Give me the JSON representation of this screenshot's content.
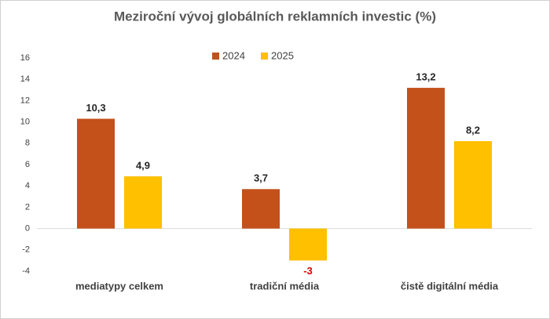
{
  "chart_data": {
    "type": "bar",
    "title": "Meziroční vývoj globálních reklamních investic (%)",
    "categories": [
      "mediatypy celkem",
      "tradiční média",
      "čistě digitální média"
    ],
    "series": [
      {
        "name": "2024",
        "color": "#c4501a",
        "values": [
          10.3,
          3.7,
          13.2
        ],
        "value_labels": [
          "10,3",
          "3,7",
          "13,2"
        ]
      },
      {
        "name": "2025",
        "color": "#ffc000",
        "values": [
          4.9,
          -3,
          8.2
        ],
        "value_labels": [
          "4,9",
          "-3",
          "8,2"
        ]
      }
    ],
    "ylim": [
      -4,
      16
    ],
    "yticks": [
      -4,
      -2,
      0,
      2,
      4,
      6,
      8,
      10,
      12,
      14,
      16
    ],
    "grid": false,
    "legend": "top",
    "negative_label_color": "#e00000"
  }
}
